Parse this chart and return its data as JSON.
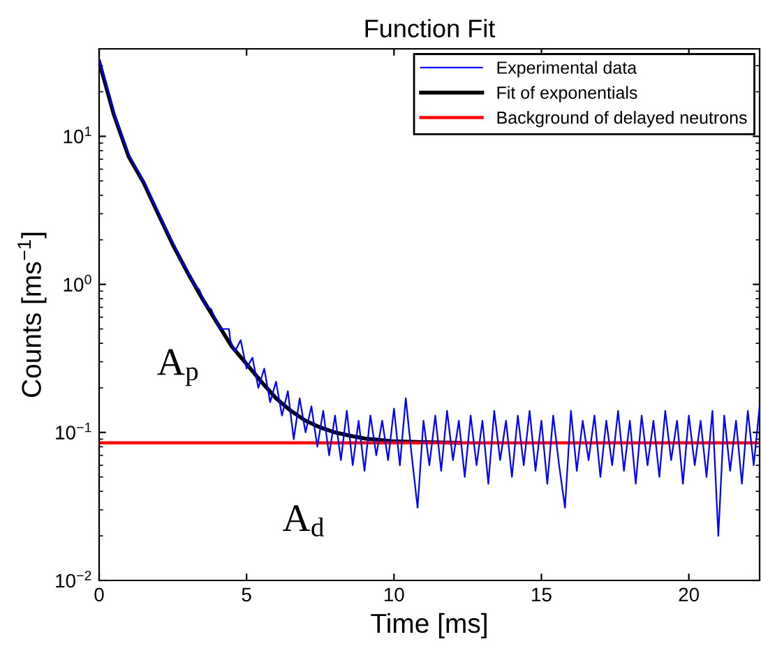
{
  "chart_data": {
    "type": "line",
    "title": "Function Fit",
    "xlabel": "Time [ms]",
    "ylabel": "Counts [ms$^{−1}$]",
    "log": "y",
    "xlim": [
      0,
      22.4
    ],
    "ylim": [
      0.01,
      39
    ],
    "xticks": [
      0,
      5,
      10,
      15,
      20
    ],
    "yticks": [
      {
        "value": 0.01,
        "label": "10$^{−2}$"
      },
      {
        "value": 0.1,
        "label": "10$^{−1}$"
      },
      {
        "value": 1,
        "label": "10$^{0}$"
      },
      {
        "value": 10,
        "label": "10$^{1}$"
      }
    ],
    "grid": false,
    "legend": "top right",
    "annotations": [
      "A$_{p}$",
      "A$_{d}$"
    ],
    "series": [
      {
        "name": "Experimental data",
        "color": "#0000ff",
        "x": [
          0,
          0.2,
          0.4,
          0.6,
          0.8,
          1.0,
          1.2,
          1.4,
          1.6,
          1.8,
          2.0,
          2.2,
          2.4,
          2.6,
          2.8,
          3.0,
          3.2,
          3.4,
          3.6,
          3.8,
          4.0,
          4.1,
          4.4,
          4.45,
          4.6,
          4.8,
          5.0,
          5.2,
          5.4,
          5.6,
          5.8,
          6.0,
          6.2,
          6.4,
          6.6,
          6.8,
          7.0,
          7.2,
          7.4,
          7.6,
          7.8,
          8.0,
          8.2,
          8.4,
          8.6,
          8.8,
          9.0,
          9.2,
          9.4,
          9.6,
          9.8,
          10.0,
          10.2,
          10.4,
          10.6,
          10.8,
          11.0,
          11.2,
          11.4,
          11.6,
          11.8,
          12.0,
          12.2,
          12.4,
          12.6,
          12.8,
          13.0,
          13.2,
          13.4,
          13.6,
          13.8,
          14.0,
          14.2,
          14.4,
          14.6,
          14.8,
          15.0,
          15.2,
          15.4,
          15.6,
          15.8,
          16.0,
          16.2,
          16.4,
          16.6,
          16.8,
          17.0,
          17.2,
          17.4,
          17.6,
          17.8,
          18.0,
          18.2,
          18.4,
          18.6,
          18.8,
          19.0,
          19.2,
          19.4,
          19.6,
          19.8,
          20.0,
          20.2,
          20.4,
          20.6,
          20.8,
          21.0,
          21.2,
          21.4,
          21.6,
          21.8,
          22.0,
          22.2,
          22.4
        ],
        "values": [
          33,
          24,
          17,
          12.5,
          9.6,
          7.6,
          6.4,
          5.4,
          4.6,
          3.7,
          3.1,
          2.5,
          2.1,
          1.75,
          1.4,
          1.25,
          1.0,
          0.92,
          0.72,
          0.68,
          0.55,
          0.5,
          0.5,
          0.42,
          0.35,
          0.42,
          0.27,
          0.32,
          0.2,
          0.27,
          0.16,
          0.22,
          0.13,
          0.19,
          0.09,
          0.17,
          0.1,
          0.15,
          0.08,
          0.14,
          0.07,
          0.13,
          0.065,
          0.14,
          0.06,
          0.12,
          0.055,
          0.13,
          0.07,
          0.12,
          0.065,
          0.145,
          0.06,
          0.17,
          0.07,
          0.031,
          0.12,
          0.06,
          0.13,
          0.055,
          0.14,
          0.065,
          0.12,
          0.05,
          0.13,
          0.06,
          0.12,
          0.045,
          0.14,
          0.065,
          0.12,
          0.05,
          0.13,
          0.06,
          0.14,
          0.055,
          0.12,
          0.045,
          0.13,
          0.06,
          0.031,
          0.14,
          0.055,
          0.12,
          0.065,
          0.13,
          0.05,
          0.12,
          0.06,
          0.14,
          0.055,
          0.12,
          0.045,
          0.13,
          0.06,
          0.12,
          0.05,
          0.14,
          0.065,
          0.12,
          0.045,
          0.13,
          0.06,
          0.12,
          0.05,
          0.14,
          0.02,
          0.13,
          0.055,
          0.12,
          0.045,
          0.14,
          0.06,
          0.15
        ]
      },
      {
        "name": "Fit of exponentials",
        "color": "#000000",
        "x": [
          0,
          0.5,
          1,
          1.5,
          2,
          2.5,
          3,
          3.5,
          4,
          4.5,
          5,
          5.5,
          6,
          6.5,
          7,
          7.5,
          8,
          8.5,
          9,
          9.5,
          10,
          11,
          12.2
        ],
        "values": [
          32,
          14,
          7.3,
          4.9,
          3.0,
          1.85,
          1.2,
          0.8,
          0.55,
          0.38,
          0.29,
          0.22,
          0.17,
          0.14,
          0.12,
          0.108,
          0.1,
          0.095,
          0.091,
          0.089,
          0.087,
          0.086,
          0.085
        ]
      },
      {
        "name": "Background of delayed neutrons",
        "color": "#ff0000",
        "x": [
          0,
          22.4
        ],
        "values": [
          0.085,
          0.085
        ]
      }
    ]
  }
}
